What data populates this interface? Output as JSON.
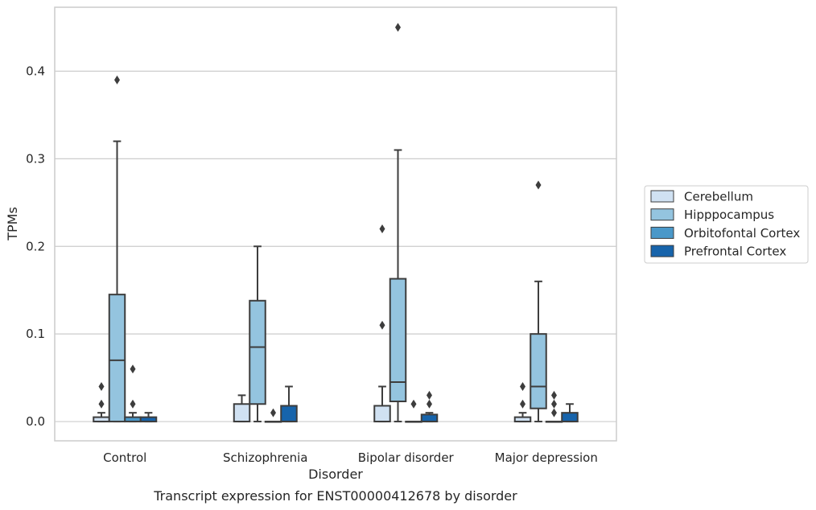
{
  "chart_data": {
    "type": "box",
    "title": "",
    "caption": "Transcript expression for ENST00000412678 by disorder",
    "xlabel": "Disorder",
    "ylabel": "TPMs",
    "ylim": [
      -0.022,
      0.473
    ],
    "yticks": [
      0.0,
      0.1,
      0.2,
      0.3,
      0.4
    ],
    "ytick_labels": [
      "0.0",
      "0.1",
      "0.2",
      "0.3",
      "0.4"
    ],
    "grid": "horizontal",
    "legend_position": "right",
    "categories": [
      "Control",
      "Schizophrenia",
      "Bipolar disorder",
      "Major depression"
    ],
    "series": [
      {
        "name": "Cerebellum",
        "color": "#d0e1f2",
        "boxes": [
          {
            "q1": 0.0,
            "median": 0.0,
            "q3": 0.005,
            "whislo": 0.0,
            "whishi": 0.01,
            "fliers": [
              0.02,
              0.04
            ]
          },
          {
            "q1": 0.0,
            "median": 0.0,
            "q3": 0.02,
            "whislo": 0.0,
            "whishi": 0.03,
            "fliers": []
          },
          {
            "q1": 0.0,
            "median": 0.0,
            "q3": 0.018,
            "whislo": 0.0,
            "whishi": 0.04,
            "fliers": [
              0.11,
              0.22
            ]
          },
          {
            "q1": 0.0,
            "median": 0.0,
            "q3": 0.005,
            "whislo": 0.0,
            "whishi": 0.01,
            "fliers": [
              0.02,
              0.04
            ]
          }
        ]
      },
      {
        "name": "Hipppocampus",
        "color": "#94c4df",
        "boxes": [
          {
            "q1": 0.0,
            "median": 0.07,
            "q3": 0.145,
            "whislo": 0.0,
            "whishi": 0.32,
            "fliers": [
              0.39
            ]
          },
          {
            "q1": 0.02,
            "median": 0.085,
            "q3": 0.138,
            "whislo": 0.0,
            "whishi": 0.2,
            "fliers": []
          },
          {
            "q1": 0.023,
            "median": 0.045,
            "q3": 0.163,
            "whislo": 0.0,
            "whishi": 0.31,
            "fliers": [
              0.45
            ]
          },
          {
            "q1": 0.015,
            "median": 0.04,
            "q3": 0.1,
            "whislo": 0.0,
            "whishi": 0.16,
            "fliers": [
              0.27
            ]
          }
        ]
      },
      {
        "name": "Orbitofontal Cortex",
        "color": "#4a98c9",
        "boxes": [
          {
            "q1": 0.0,
            "median": 0.0,
            "q3": 0.005,
            "whislo": 0.0,
            "whishi": 0.01,
            "fliers": [
              0.02,
              0.06
            ]
          },
          {
            "q1": 0.0,
            "median": 0.0,
            "q3": 0.0,
            "whislo": 0.0,
            "whishi": 0.0,
            "fliers": [
              0.01
            ]
          },
          {
            "q1": 0.0,
            "median": 0.0,
            "q3": 0.0,
            "whislo": 0.0,
            "whishi": 0.0,
            "fliers": [
              0.02
            ]
          },
          {
            "q1": 0.0,
            "median": 0.0,
            "q3": 0.0,
            "whislo": 0.0,
            "whishi": 0.0,
            "fliers": [
              0.01,
              0.02,
              0.03
            ]
          }
        ]
      },
      {
        "name": "Prefrontal Cortex",
        "color": "#1764ab",
        "boxes": [
          {
            "q1": 0.0,
            "median": 0.0,
            "q3": 0.005,
            "whislo": 0.0,
            "whishi": 0.01,
            "fliers": []
          },
          {
            "q1": 0.0,
            "median": 0.0,
            "q3": 0.018,
            "whislo": 0.0,
            "whishi": 0.04,
            "fliers": []
          },
          {
            "q1": 0.0,
            "median": 0.0,
            "q3": 0.008,
            "whislo": 0.0,
            "whishi": 0.01,
            "fliers": [
              0.02,
              0.03
            ]
          },
          {
            "q1": 0.0,
            "median": 0.0,
            "q3": 0.01,
            "whislo": 0.0,
            "whishi": 0.02,
            "fliers": []
          }
        ]
      }
    ]
  }
}
